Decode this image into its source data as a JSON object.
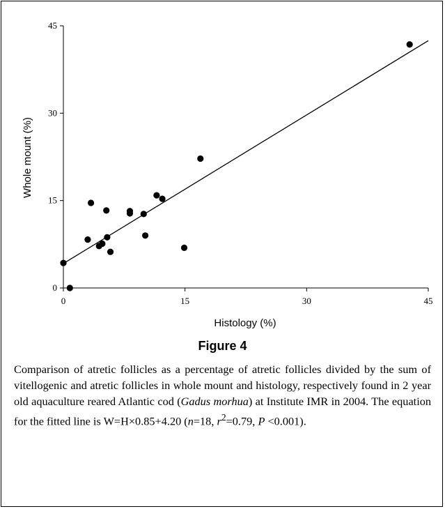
{
  "chart_data": {
    "type": "scatter",
    "title": "",
    "xlabel": "Histology (%)",
    "ylabel": "Whole mount (%)",
    "xlim": [
      0,
      45
    ],
    "ylim": [
      0,
      45
    ],
    "x_ticks": [
      0,
      15,
      30,
      45
    ],
    "y_ticks": [
      0,
      15,
      30,
      45
    ],
    "x_tick_labels": [
      "0",
      "15",
      "30",
      "45"
    ],
    "y_tick_labels": [
      "0",
      "15",
      "30",
      "45"
    ],
    "grid": false,
    "series": [
      {
        "points": [
          {
            "x": 0.8,
            "y": 0.0
          },
          {
            "x": 0.0,
            "y": 4.3
          },
          {
            "x": 3.0,
            "y": 8.3
          },
          {
            "x": 3.4,
            "y": 14.6
          },
          {
            "x": 4.4,
            "y": 7.2
          },
          {
            "x": 4.8,
            "y": 7.6
          },
          {
            "x": 5.3,
            "y": 13.3
          },
          {
            "x": 5.4,
            "y": 8.7
          },
          {
            "x": 5.8,
            "y": 6.2
          },
          {
            "x": 8.2,
            "y": 13.2
          },
          {
            "x": 8.2,
            "y": 12.8
          },
          {
            "x": 9.9,
            "y": 12.7
          },
          {
            "x": 10.1,
            "y": 9.0
          },
          {
            "x": 11.5,
            "y": 15.9
          },
          {
            "x": 12.2,
            "y": 15.3
          },
          {
            "x": 14.9,
            "y": 6.9
          },
          {
            "x": 16.9,
            "y": 22.2
          },
          {
            "x": 42.7,
            "y": 41.8
          }
        ]
      }
    ],
    "fitted_line": {
      "slope": 0.85,
      "intercept": 4.2,
      "x_range": [
        0,
        45
      ]
    }
  },
  "figure": {
    "label": "Figure 4",
    "caption_part1": "Comparison of atretic follicles as a percentage of atretic follicles divided by the sum of vitellogenic and atretic follicles in whole mount and histology, respectively found in 2 year old aquaculture reared Atlantic cod (",
    "species": "Gadus morhua",
    "caption_part2": ") at Institute IMR in 2004. The equation for the fitted line is W=H×0.85+4.20 (",
    "n_symbol": "n",
    "n_value": "=18, ",
    "r_symbol": "r",
    "r_exp": "2",
    "r_value": "=0.79, ",
    "p_symbol": "P",
    "p_value": " <0.001)."
  }
}
